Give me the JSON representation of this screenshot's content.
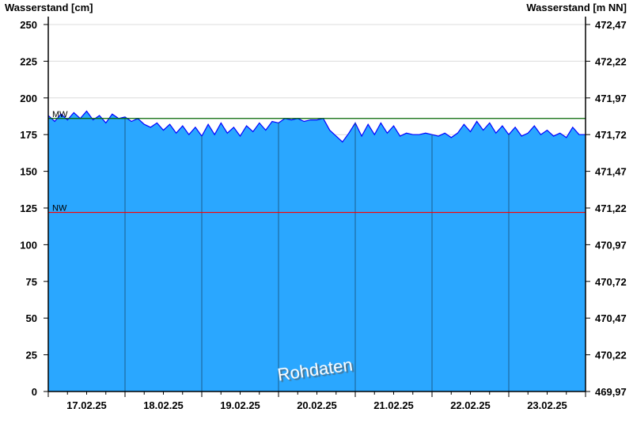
{
  "chart_data": {
    "type": "area",
    "ylabel_left": "Wasserstand [cm]",
    "ylabel_right": "Wasserstand [m NN]",
    "ylim": [
      0,
      250
    ],
    "yticks_left": [
      "0",
      "25",
      "50",
      "75",
      "100",
      "125",
      "150",
      "175",
      "200",
      "225",
      "250"
    ],
    "yticks_right": [
      "469,97",
      "470,22",
      "470,47",
      "470,72",
      "470,97",
      "471,22",
      "471,47",
      "471,72",
      "471,97",
      "472,22",
      "472,47"
    ],
    "xtick_labels": [
      "17.02.25",
      "18.02.25",
      "19.02.25",
      "20.02.25",
      "21.02.25",
      "22.02.25",
      "23.02.25"
    ],
    "sample_interval_hours": 2,
    "series": [
      {
        "values": [
          188,
          184,
          189,
          185,
          190,
          186,
          191,
          185,
          188,
          183,
          189,
          186,
          187,
          184,
          186,
          182,
          180,
          183,
          178,
          182,
          176,
          181,
          175,
          180,
          174,
          182,
          175,
          183,
          176,
          180,
          174,
          181,
          177,
          183,
          178,
          184,
          183,
          186,
          185,
          186,
          184,
          185,
          185,
          186,
          178,
          174,
          170,
          176,
          183,
          174,
          182,
          175,
          183,
          176,
          181,
          174,
          176,
          175,
          175,
          176,
          175,
          174,
          176,
          173,
          176,
          182,
          177,
          184,
          178,
          183,
          176,
          181,
          175,
          180,
          174,
          176,
          181,
          175,
          178,
          174,
          176,
          173,
          180,
          175,
          175
        ]
      }
    ],
    "reference_lines": [
      {
        "label": "MW",
        "value": 186,
        "color": "#006400"
      },
      {
        "label": "NW",
        "value": 122,
        "color": "#ff0000"
      }
    ],
    "fill_color": "#2aa7ff",
    "line_color": "#0000ff",
    "grid": true,
    "watermark": "Rohdaten"
  }
}
